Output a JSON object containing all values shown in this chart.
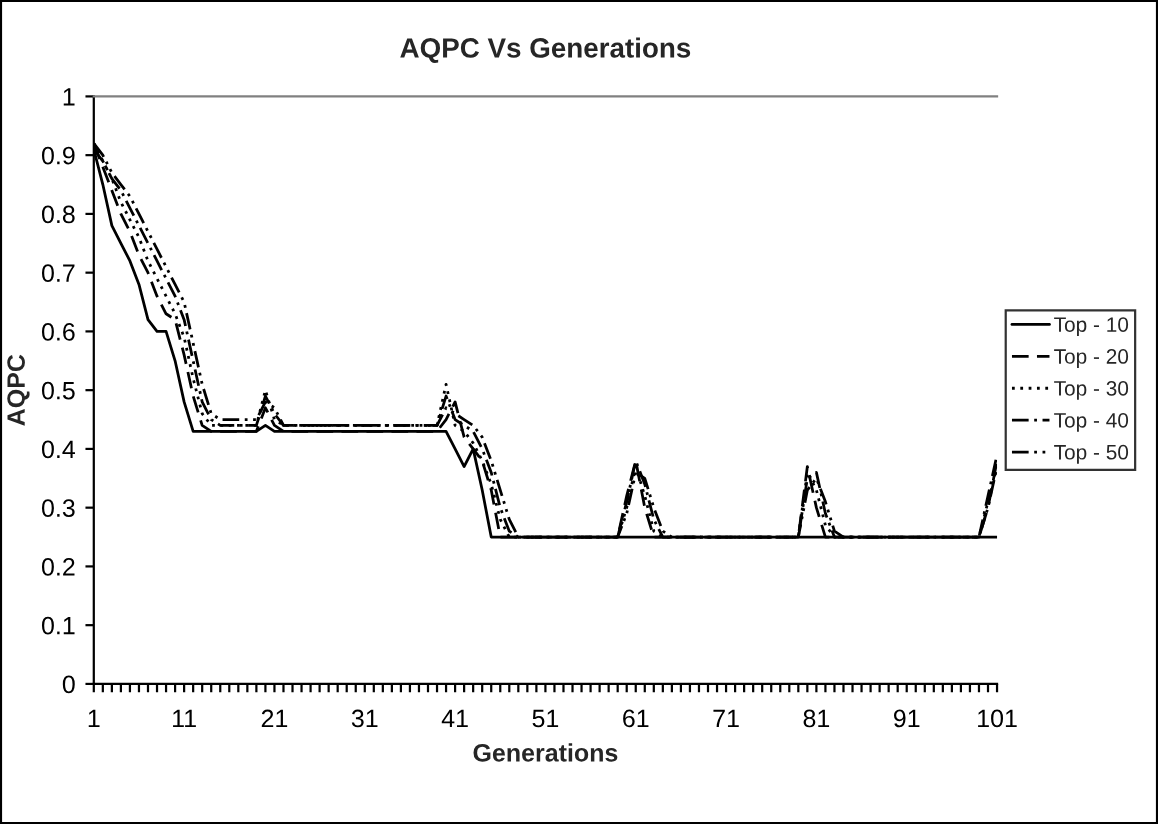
{
  "chart_data": {
    "type": "line",
    "title": "AQPC Vs Generations",
    "xlabel": "Generations",
    "ylabel": "AQPC",
    "categories": [
      "1",
      null,
      null,
      null,
      null,
      null,
      null,
      null,
      null,
      null,
      "11",
      null,
      null,
      null,
      null,
      null,
      null,
      null,
      null,
      null,
      "21",
      null,
      null,
      null,
      null,
      null,
      null,
      null,
      null,
      null,
      "31",
      null,
      null,
      null,
      null,
      null,
      null,
      null,
      null,
      null,
      "41",
      null,
      null,
      null,
      null,
      null,
      null,
      null,
      null,
      null,
      "51",
      null,
      null,
      null,
      null,
      null,
      null,
      null,
      null,
      null,
      "61",
      null,
      null,
      null,
      null,
      null,
      null,
      null,
      null,
      null,
      "71",
      null,
      null,
      null,
      null,
      null,
      null,
      null,
      null,
      null,
      "81",
      null,
      null,
      null,
      null,
      null,
      null,
      null,
      null,
      null,
      "91",
      null,
      null,
      null,
      null,
      null,
      null,
      null,
      null,
      null,
      "101"
    ],
    "ylim": [
      0,
      1
    ],
    "yticks": [
      0,
      0.1,
      0.2,
      0.3,
      0.4,
      0.5,
      0.6,
      0.7,
      0.8,
      0.9,
      1
    ],
    "grid": false,
    "legend": "right",
    "marker": "none",
    "series": [
      {
        "name": "Top - 10",
        "color": "#000000",
        "line_style": "solid",
        "values": [
          0.91,
          0.85,
          0.78,
          0.75,
          0.72,
          0.68,
          0.62,
          0.6,
          0.6,
          0.55,
          0.48,
          0.43,
          0.43,
          0.43,
          0.43,
          0.43,
          0.43,
          0.43,
          0.43,
          0.44,
          0.43,
          0.43,
          0.43,
          0.43,
          0.43,
          0.43,
          0.43,
          0.43,
          0.43,
          0.43,
          0.43,
          0.43,
          0.43,
          0.43,
          0.43,
          0.43,
          0.43,
          0.43,
          0.43,
          0.43,
          0.4,
          0.37,
          0.4,
          0.33,
          0.25,
          0.25,
          0.25,
          0.25,
          0.25,
          0.25,
          0.25,
          0.25,
          0.25,
          0.25,
          0.25,
          0.25,
          0.25,
          0.25,
          0.25,
          0.25,
          0.25,
          0.25,
          0.25,
          0.25,
          0.25,
          0.25,
          0.25,
          0.25,
          0.25,
          0.25,
          0.25,
          0.25,
          0.25,
          0.25,
          0.25,
          0.25,
          0.25,
          0.25,
          0.25,
          0.25,
          0.25,
          0.25,
          0.25,
          0.25,
          0.25,
          0.25,
          0.25,
          0.25,
          0.25,
          0.25,
          0.25,
          0.25,
          0.25,
          0.25,
          0.25,
          0.25,
          0.25,
          0.25,
          0.25,
          0.25,
          0.25
        ]
      },
      {
        "name": "Top - 20",
        "color": "#000000",
        "line_style": "dashed",
        "values": [
          0.92,
          0.88,
          0.84,
          0.8,
          0.77,
          0.73,
          0.7,
          0.66,
          0.63,
          0.62,
          0.56,
          0.49,
          0.44,
          0.43,
          0.43,
          0.43,
          0.43,
          0.43,
          0.43,
          0.47,
          0.44,
          0.43,
          0.43,
          0.43,
          0.43,
          0.43,
          0.43,
          0.43,
          0.43,
          0.43,
          0.43,
          0.43,
          0.43,
          0.43,
          0.43,
          0.43,
          0.43,
          0.43,
          0.43,
          0.45,
          0.48,
          0.42,
          0.4,
          0.38,
          0.33,
          0.25,
          0.25,
          0.25,
          0.25,
          0.25,
          0.25,
          0.25,
          0.25,
          0.25,
          0.25,
          0.25,
          0.25,
          0.25,
          0.25,
          0.32,
          0.38,
          0.3,
          0.25,
          0.25,
          0.25,
          0.25,
          0.25,
          0.25,
          0.25,
          0.25,
          0.25,
          0.25,
          0.25,
          0.25,
          0.25,
          0.25,
          0.25,
          0.25,
          0.25,
          0.37,
          0.3,
          0.25,
          0.25,
          0.25,
          0.25,
          0.25,
          0.25,
          0.25,
          0.25,
          0.25,
          0.25,
          0.25,
          0.25,
          0.25,
          0.25,
          0.25,
          0.25,
          0.25,
          0.25,
          0.3,
          0.38
        ]
      },
      {
        "name": "Top - 30",
        "color": "#000000",
        "line_style": "dotted",
        "values": [
          0.92,
          0.89,
          0.86,
          0.82,
          0.79,
          0.76,
          0.72,
          0.69,
          0.66,
          0.63,
          0.59,
          0.52,
          0.46,
          0.44,
          0.44,
          0.44,
          0.44,
          0.44,
          0.44,
          0.5,
          0.45,
          0.44,
          0.44,
          0.44,
          0.44,
          0.44,
          0.44,
          0.44,
          0.44,
          0.44,
          0.44,
          0.44,
          0.44,
          0.44,
          0.44,
          0.44,
          0.44,
          0.44,
          0.44,
          0.51,
          0.44,
          0.43,
          0.41,
          0.38,
          0.34,
          0.28,
          0.25,
          0.25,
          0.25,
          0.25,
          0.25,
          0.25,
          0.25,
          0.25,
          0.25,
          0.25,
          0.25,
          0.25,
          0.25,
          0.3,
          0.37,
          0.32,
          0.26,
          0.25,
          0.25,
          0.25,
          0.25,
          0.25,
          0.25,
          0.25,
          0.25,
          0.25,
          0.25,
          0.25,
          0.25,
          0.25,
          0.25,
          0.25,
          0.25,
          0.36,
          0.33,
          0.27,
          0.25,
          0.25,
          0.25,
          0.25,
          0.25,
          0.25,
          0.25,
          0.25,
          0.25,
          0.25,
          0.25,
          0.25,
          0.25,
          0.25,
          0.25,
          0.25,
          0.25,
          0.31,
          0.37
        ]
      },
      {
        "name": "Top - 40",
        "color": "#000000",
        "line_style": "dashdot",
        "values": [
          0.91,
          0.89,
          0.86,
          0.84,
          0.81,
          0.78,
          0.75,
          0.72,
          0.69,
          0.66,
          0.62,
          0.55,
          0.48,
          0.45,
          0.44,
          0.44,
          0.44,
          0.44,
          0.44,
          0.49,
          0.46,
          0.44,
          0.44,
          0.44,
          0.44,
          0.44,
          0.44,
          0.44,
          0.44,
          0.44,
          0.44,
          0.44,
          0.44,
          0.44,
          0.44,
          0.44,
          0.44,
          0.44,
          0.44,
          0.49,
          0.45,
          0.44,
          0.43,
          0.4,
          0.36,
          0.3,
          0.26,
          0.25,
          0.25,
          0.25,
          0.25,
          0.25,
          0.25,
          0.25,
          0.25,
          0.25,
          0.25,
          0.25,
          0.25,
          0.31,
          0.38,
          0.34,
          0.28,
          0.25,
          0.25,
          0.25,
          0.25,
          0.25,
          0.25,
          0.25,
          0.25,
          0.25,
          0.25,
          0.25,
          0.25,
          0.25,
          0.25,
          0.25,
          0.25,
          0.35,
          0.36,
          0.29,
          0.25,
          0.25,
          0.25,
          0.25,
          0.25,
          0.25,
          0.25,
          0.25,
          0.25,
          0.25,
          0.25,
          0.25,
          0.25,
          0.25,
          0.25,
          0.25,
          0.25,
          0.32,
          0.39
        ]
      },
      {
        "name": "Top - 50",
        "color": "#000000",
        "line_style": "dashdotdot",
        "values": [
          0.92,
          0.9,
          0.87,
          0.85,
          0.83,
          0.8,
          0.77,
          0.74,
          0.71,
          0.68,
          0.65,
          0.58,
          0.51,
          0.46,
          0.45,
          0.45,
          0.45,
          0.45,
          0.45,
          0.48,
          0.47,
          0.44,
          0.44,
          0.44,
          0.44,
          0.44,
          0.44,
          0.44,
          0.44,
          0.44,
          0.44,
          0.44,
          0.44,
          0.44,
          0.44,
          0.44,
          0.44,
          0.44,
          0.44,
          0.47,
          0.46,
          0.45,
          0.44,
          0.42,
          0.38,
          0.33,
          0.28,
          0.25,
          0.25,
          0.25,
          0.25,
          0.25,
          0.25,
          0.25,
          0.25,
          0.25,
          0.25,
          0.25,
          0.25,
          0.29,
          0.36,
          0.35,
          0.3,
          0.26,
          0.25,
          0.25,
          0.25,
          0.25,
          0.25,
          0.25,
          0.25,
          0.25,
          0.25,
          0.25,
          0.25,
          0.25,
          0.25,
          0.25,
          0.25,
          0.33,
          0.35,
          0.31,
          0.26,
          0.25,
          0.25,
          0.25,
          0.25,
          0.25,
          0.25,
          0.25,
          0.25,
          0.25,
          0.25,
          0.25,
          0.25,
          0.25,
          0.25,
          0.25,
          0.25,
          0.3,
          0.37
        ]
      }
    ]
  }
}
